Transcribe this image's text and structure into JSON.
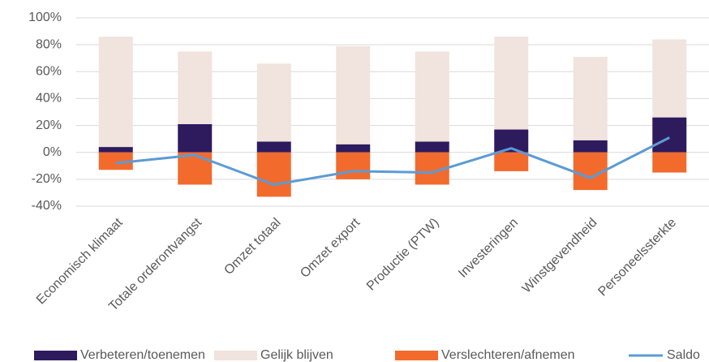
{
  "chart_data": {
    "type": "bar",
    "categories": [
      "Economisch klimaat",
      "Totale orderontvangst",
      "Omzet totaal",
      "Omzet export",
      "Productie (PTW)",
      "Investeringen",
      "Winstgevendheid",
      "Personeelssterkte"
    ],
    "series": [
      {
        "name": "Verbeteren/toenemen",
        "color": "#2e1b5e",
        "type": "bar",
        "values": [
          4,
          21,
          8,
          6,
          8,
          17,
          9,
          26
        ]
      },
      {
        "name": "Gelijk blijven",
        "color": "#f1e3dd",
        "type": "bar",
        "values": [
          82,
          54,
          58,
          73,
          67,
          69,
          62,
          58
        ]
      },
      {
        "name": "Verslechteren/afnemen",
        "color": "#f26b2d",
        "type": "bar",
        "values": [
          -13,
          -24,
          -33,
          -20,
          -24,
          -14,
          -28,
          -15
        ]
      },
      {
        "name": "Saldo",
        "color": "#5b9bd5",
        "type": "line",
        "values": [
          -8,
          -2,
          -24,
          -14,
          -15,
          3,
          -19,
          11
        ]
      }
    ],
    "ylim": [
      -40,
      100
    ],
    "yticks": [
      {
        "value": -40,
        "label": "-40%"
      },
      {
        "value": -20,
        "label": "-20%"
      },
      {
        "value": 0,
        "label": "0%"
      },
      {
        "value": 20,
        "label": "20%"
      },
      {
        "value": 40,
        "label": "40%"
      },
      {
        "value": 60,
        "label": "60%"
      },
      {
        "value": 80,
        "label": "80%"
      },
      {
        "value": 100,
        "label": "100%"
      }
    ],
    "grid": true,
    "legend": "bottom"
  }
}
